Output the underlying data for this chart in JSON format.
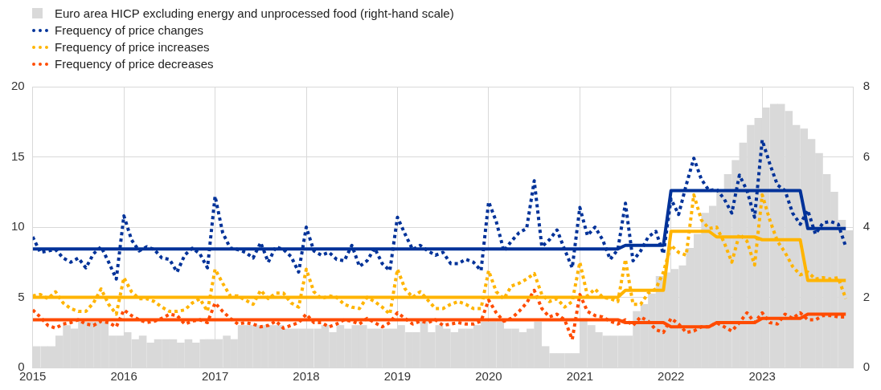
{
  "chart_data": {
    "type": "line",
    "x": [
      "2015-01",
      "2015-02",
      "2015-03",
      "2015-04",
      "2015-05",
      "2015-06",
      "2015-07",
      "2015-08",
      "2015-09",
      "2015-10",
      "2015-11",
      "2015-12",
      "2016-01",
      "2016-02",
      "2016-03",
      "2016-04",
      "2016-05",
      "2016-06",
      "2016-07",
      "2016-08",
      "2016-09",
      "2016-10",
      "2016-11",
      "2016-12",
      "2017-01",
      "2017-02",
      "2017-03",
      "2017-04",
      "2017-05",
      "2017-06",
      "2017-07",
      "2017-08",
      "2017-09",
      "2017-10",
      "2017-11",
      "2017-12",
      "2018-01",
      "2018-02",
      "2018-03",
      "2018-04",
      "2018-05",
      "2018-06",
      "2018-07",
      "2018-08",
      "2018-09",
      "2018-10",
      "2018-11",
      "2018-12",
      "2019-01",
      "2019-02",
      "2019-03",
      "2019-04",
      "2019-05",
      "2019-06",
      "2019-07",
      "2019-08",
      "2019-09",
      "2019-10",
      "2019-11",
      "2019-12",
      "2020-01",
      "2020-02",
      "2020-03",
      "2020-04",
      "2020-05",
      "2020-06",
      "2020-07",
      "2020-08",
      "2020-09",
      "2020-10",
      "2020-11",
      "2020-12",
      "2021-01",
      "2021-02",
      "2021-03",
      "2021-04",
      "2021-05",
      "2021-06",
      "2021-07",
      "2021-08",
      "2021-09",
      "2021-10",
      "2021-11",
      "2021-12",
      "2022-01",
      "2022-02",
      "2022-03",
      "2022-04",
      "2022-05",
      "2022-06",
      "2022-07",
      "2022-08",
      "2022-09",
      "2022-10",
      "2022-11",
      "2022-12",
      "2023-01",
      "2023-02",
      "2023-03",
      "2023-04",
      "2023-05",
      "2023-06",
      "2023-07",
      "2023-08",
      "2023-09",
      "2023-10",
      "2023-11",
      "2023-12"
    ],
    "xlim": [
      "2015",
      "2024"
    ],
    "xticks": [
      "2015",
      "2016",
      "2017",
      "2018",
      "2019",
      "2020",
      "2021",
      "2022",
      "2023"
    ],
    "ylim": [
      0,
      20
    ],
    "yticks": [
      0,
      5,
      10,
      15,
      20
    ],
    "y2lim": [
      0,
      8
    ],
    "y2ticks": [
      0,
      2,
      4,
      6,
      8
    ],
    "grid": true,
    "legend": "top left",
    "series": [
      {
        "name": "Euro area HICP excluding energy and unprocessed food (right-hand scale)",
        "type": "bar",
        "axis": "y2",
        "x": [
          "2015-01-16",
          "2015-02-16",
          "2015-03-16",
          "2015-04-16",
          "2015-05-16",
          "2015-06-16",
          "2015-07-16",
          "2015-08-16",
          "2015-09-16",
          "2015-10-16",
          "2015-11-16",
          "2015-12-16",
          "2016-01-16",
          "2016-02-16",
          "2016-03-16",
          "2016-04-16",
          "2016-05-16",
          "2016-06-16",
          "2016-07-16",
          "2016-08-16",
          "2016-09-16",
          "2016-10-16",
          "2016-11-16",
          "2016-12-16",
          "2017-01-16",
          "2017-02-16",
          "2017-03-16",
          "2017-04-16",
          "2017-05-16",
          "2017-06-16",
          "2017-07-16",
          "2017-08-16",
          "2017-09-16",
          "2017-10-16",
          "2017-11-16",
          "2017-12-16",
          "2018-01-16",
          "2018-02-16",
          "2018-03-16",
          "2018-04-16",
          "2018-05-16",
          "2018-06-16",
          "2018-07-16",
          "2018-08-16",
          "2018-09-16",
          "2018-10-16",
          "2018-11-16",
          "2018-12-16",
          "2019-01-16",
          "2019-02-16",
          "2019-03-16",
          "2019-04-16",
          "2019-05-16",
          "2019-06-16",
          "2019-07-16",
          "2019-08-16",
          "2019-09-16",
          "2019-10-16",
          "2019-11-16",
          "2019-12-16",
          "2020-01-16",
          "2020-02-16",
          "2020-03-16",
          "2020-04-16",
          "2020-05-16",
          "2020-06-16",
          "2020-07-16",
          "2020-08-16",
          "2020-09-16",
          "2020-10-16",
          "2020-11-16",
          "2020-12-16",
          "2021-01-16",
          "2021-02-16",
          "2021-03-16",
          "2021-04-16",
          "2021-05-16",
          "2021-06-16",
          "2021-07-16",
          "2021-08-16",
          "2021-09-16",
          "2021-10-16",
          "2021-11-16",
          "2021-12-16",
          "2022-01-16",
          "2022-02-16",
          "2022-03-16",
          "2022-04-16",
          "2022-05-16",
          "2022-06-16",
          "2022-07-16",
          "2022-08-16",
          "2022-09-16",
          "2022-10-16",
          "2022-11-16",
          "2022-12-16",
          "2023-01-16",
          "2023-02-16",
          "2023-03-16",
          "2023-04-16",
          "2023-05-16",
          "2023-06-16",
          "2023-07-16",
          "2023-08-16",
          "2023-09-16",
          "2023-10-16",
          "2023-11-16",
          "2023-12-16"
        ],
        "color": "#d9d9d9",
        "values": [
          0.6,
          0.6,
          0.6,
          0.9,
          1.2,
          1.1,
          1.3,
          1.3,
          1.3,
          1.3,
          0.9,
          0.9,
          1.0,
          0.8,
          0.9,
          0.7,
          0.8,
          0.8,
          0.8,
          0.7,
          0.8,
          0.7,
          0.8,
          0.8,
          0.8,
          0.9,
          0.8,
          1.2,
          1.2,
          1.2,
          1.2,
          1.2,
          1.2,
          1.1,
          1.1,
          1.1,
          1.1,
          1.1,
          1.2,
          1.0,
          1.2,
          1.1,
          1.2,
          1.2,
          1.1,
          1.1,
          1.1,
          1.1,
          1.2,
          1.0,
          1.0,
          1.3,
          1.0,
          1.2,
          1.1,
          1.0,
          1.1,
          1.1,
          1.2,
          1.3,
          1.3,
          1.3,
          1.1,
          1.1,
          1.0,
          1.1,
          1.3,
          0.6,
          0.4,
          0.4,
          0.4,
          0.4,
          1.4,
          1.2,
          1.0,
          0.9,
          0.9,
          0.9,
          0.9,
          1.6,
          1.8,
          2.1,
          2.6,
          2.7,
          2.8,
          2.9,
          3.4,
          3.8,
          4.4,
          4.6,
          5.0,
          5.5,
          5.9,
          6.4,
          6.9,
          7.1,
          7.4,
          7.5,
          7.5,
          7.3,
          6.9,
          6.8,
          6.5,
          6.1,
          5.5,
          5.0,
          4.2,
          3.9
        ]
      },
      {
        "name": "Frequency of price changes",
        "color": "#003299",
        "line_style": "dotted",
        "values": [
          9.3,
          8.2,
          8.3,
          8.4,
          7.8,
          7.5,
          7.8,
          7.1,
          8.1,
          8.6,
          7.5,
          6.3,
          10.8,
          9.1,
          8.3,
          8.6,
          8.4,
          7.8,
          7.7,
          6.8,
          8.0,
          8.5,
          8.1,
          7.1,
          12.2,
          9.6,
          8.5,
          8.4,
          8.2,
          7.8,
          8.9,
          7.5,
          8.6,
          8.4,
          7.9,
          6.8,
          10.0,
          8.3,
          8.0,
          8.2,
          7.7,
          7.6,
          8.7,
          7.2,
          7.6,
          8.5,
          7.4,
          6.9,
          10.7,
          9.5,
          8.4,
          8.7,
          8.3,
          8.0,
          8.2,
          7.4,
          7.4,
          7.7,
          7.5,
          6.9,
          11.8,
          10.4,
          8.3,
          9.0,
          9.6,
          9.9,
          13.3,
          8.6,
          9.1,
          9.8,
          8.4,
          7.1,
          11.4,
          9.4,
          10.0,
          9.1,
          7.7,
          8.4,
          11.7,
          7.6,
          8.3,
          9.3,
          9.7,
          8.1,
          12.0,
          10.9,
          13.0,
          14.9,
          13.4,
          12.6,
          12.7,
          12.0,
          11.0,
          13.7,
          12.6,
          10.7,
          16.2,
          14.5,
          13.0,
          12.6,
          11.0,
          10.2,
          11.2,
          9.5,
          10.3,
          10.4,
          10.2,
          8.6
        ]
      },
      {
        "name": "Frequency of price increases",
        "color": "#ffb400",
        "line_style": "dotted",
        "values": [
          5.1,
          5.2,
          4.9,
          5.4,
          4.6,
          4.2,
          4.0,
          4.0,
          4.6,
          5.6,
          4.5,
          3.8,
          6.4,
          5.4,
          4.9,
          4.9,
          4.7,
          4.3,
          4.0,
          4.0,
          4.1,
          4.6,
          4.9,
          4.0,
          7.0,
          6.0,
          5.1,
          5.1,
          4.8,
          4.5,
          5.5,
          4.9,
          5.3,
          5.3,
          4.6,
          4.3,
          7.0,
          5.4,
          4.9,
          5.1,
          5.0,
          4.5,
          4.3,
          4.2,
          5.0,
          4.7,
          4.3,
          3.8,
          7.0,
          5.6,
          5.0,
          5.4,
          4.8,
          4.2,
          4.2,
          4.5,
          4.7,
          4.5,
          4.2,
          4.2,
          6.9,
          5.4,
          4.9,
          5.8,
          6.0,
          6.3,
          6.7,
          5.2,
          4.7,
          4.9,
          4.3,
          4.7,
          7.5,
          5.1,
          5.6,
          5.0,
          4.9,
          4.7,
          7.7,
          4.5,
          4.5,
          5.3,
          5.6,
          6.8,
          8.7,
          8.2,
          8.0,
          12.3,
          10.5,
          9.9,
          10.0,
          8.9,
          7.5,
          9.5,
          9.0,
          7.3,
          12.3,
          10.5,
          9.0,
          8.2,
          7.2,
          6.6,
          6.8,
          6.3,
          6.4,
          6.3,
          6.4,
          4.9
        ]
      },
      {
        "name": "Frequency of price decreases",
        "color": "#ff4b00",
        "line_style": "dotted",
        "values": [
          4.1,
          3.6,
          3.0,
          2.8,
          3.1,
          3.2,
          3.4,
          3.1,
          3.0,
          3.3,
          3.2,
          2.9,
          4.1,
          3.7,
          3.4,
          3.2,
          3.3,
          3.5,
          3.8,
          3.7,
          3.1,
          3.3,
          3.4,
          3.2,
          4.6,
          4.0,
          3.5,
          3.1,
          3.2,
          3.1,
          2.9,
          3.0,
          3.3,
          2.8,
          3.0,
          3.2,
          3.8,
          3.2,
          3.2,
          2.9,
          3.1,
          3.4,
          3.3,
          3.1,
          3.5,
          3.2,
          2.9,
          3.2,
          3.9,
          3.5,
          3.1,
          3.3,
          3.2,
          3.4,
          3.0,
          3.1,
          3.2,
          3.1,
          3.1,
          3.3,
          4.8,
          3.9,
          3.3,
          3.5,
          4.0,
          4.6,
          5.5,
          4.2,
          3.6,
          3.8,
          3.4,
          2.0,
          5.2,
          4.0,
          3.7,
          3.6,
          3.3,
          3.1,
          3.4,
          3.0,
          3.6,
          3.3,
          2.7,
          2.5,
          3.5,
          3.1,
          2.5,
          2.6,
          2.9,
          2.9,
          3.2,
          2.9,
          2.6,
          3.2,
          3.9,
          3.2,
          3.9,
          3.2,
          3.1,
          3.8,
          3.5,
          3.9,
          3.4,
          3.4,
          3.7,
          3.7,
          3.6,
          3.6
        ]
      },
      {
        "color": "#003299",
        "line_style": "solid",
        "values": [
          8.45,
          8.45,
          8.45,
          8.45,
          8.45,
          8.45,
          8.45,
          8.45,
          8.45,
          8.45,
          8.45,
          8.45,
          8.45,
          8.45,
          8.45,
          8.45,
          8.45,
          8.45,
          8.45,
          8.45,
          8.45,
          8.45,
          8.45,
          8.45,
          8.45,
          8.45,
          8.45,
          8.45,
          8.45,
          8.45,
          8.45,
          8.45,
          8.45,
          8.45,
          8.45,
          8.45,
          8.45,
          8.45,
          8.45,
          8.45,
          8.45,
          8.45,
          8.45,
          8.45,
          8.45,
          8.45,
          8.45,
          8.45,
          8.45,
          8.45,
          8.45,
          8.45,
          8.45,
          8.45,
          8.45,
          8.45,
          8.45,
          8.45,
          8.45,
          8.45,
          8.45,
          8.45,
          8.45,
          8.45,
          8.45,
          8.45,
          8.45,
          8.45,
          8.45,
          8.45,
          8.45,
          8.45,
          8.45,
          8.45,
          8.45,
          8.45,
          8.45,
          8.45,
          8.7,
          8.7,
          8.7,
          8.7,
          8.7,
          8.7,
          12.6,
          12.6,
          12.6,
          12.6,
          12.6,
          12.6,
          12.6,
          12.6,
          12.6,
          12.6,
          12.6,
          12.6,
          12.6,
          12.6,
          12.6,
          12.6,
          12.6,
          12.6,
          9.9,
          9.9,
          9.9,
          9.9,
          9.9,
          9.9
        ]
      },
      {
        "color": "#ffb400",
        "line_style": "solid",
        "values": [
          5.0,
          5.0,
          5.0,
          5.0,
          5.0,
          5.0,
          5.0,
          5.0,
          5.0,
          5.0,
          5.0,
          5.0,
          5.0,
          5.0,
          5.0,
          5.0,
          5.0,
          5.0,
          5.0,
          5.0,
          5.0,
          5.0,
          5.0,
          5.0,
          5.0,
          5.0,
          5.0,
          5.0,
          5.0,
          5.0,
          5.0,
          5.0,
          5.0,
          5.0,
          5.0,
          5.0,
          5.0,
          5.0,
          5.0,
          5.0,
          5.0,
          5.0,
          5.0,
          5.0,
          5.0,
          5.0,
          5.0,
          5.0,
          5.0,
          5.0,
          5.0,
          5.0,
          5.0,
          5.0,
          5.0,
          5.0,
          5.0,
          5.0,
          5.0,
          5.0,
          5.0,
          5.0,
          5.0,
          5.0,
          5.0,
          5.0,
          5.0,
          5.0,
          5.0,
          5.0,
          5.0,
          5.0,
          5.0,
          5.0,
          5.0,
          5.0,
          5.0,
          5.0,
          5.5,
          5.5,
          5.5,
          5.5,
          5.5,
          5.5,
          9.7,
          9.7,
          9.7,
          9.7,
          9.7,
          9.7,
          9.3,
          9.3,
          9.3,
          9.3,
          9.3,
          9.3,
          9.1,
          9.1,
          9.1,
          9.1,
          9.1,
          9.1,
          6.2,
          6.2,
          6.2,
          6.2,
          6.2,
          6.2
        ]
      },
      {
        "color": "#ff4b00",
        "line_style": "solid",
        "values": [
          3.4,
          3.4,
          3.4,
          3.4,
          3.4,
          3.4,
          3.4,
          3.4,
          3.4,
          3.4,
          3.4,
          3.4,
          3.4,
          3.4,
          3.4,
          3.4,
          3.4,
          3.4,
          3.4,
          3.4,
          3.4,
          3.4,
          3.4,
          3.4,
          3.4,
          3.4,
          3.4,
          3.4,
          3.4,
          3.4,
          3.4,
          3.4,
          3.4,
          3.4,
          3.4,
          3.4,
          3.4,
          3.4,
          3.4,
          3.4,
          3.4,
          3.4,
          3.4,
          3.4,
          3.4,
          3.4,
          3.4,
          3.4,
          3.4,
          3.4,
          3.4,
          3.4,
          3.4,
          3.4,
          3.4,
          3.4,
          3.4,
          3.4,
          3.4,
          3.4,
          3.4,
          3.4,
          3.4,
          3.4,
          3.4,
          3.4,
          3.4,
          3.4,
          3.4,
          3.4,
          3.4,
          3.4,
          3.4,
          3.4,
          3.4,
          3.4,
          3.4,
          3.4,
          3.2,
          3.2,
          3.2,
          3.2,
          3.2,
          3.2,
          2.9,
          2.9,
          2.9,
          2.9,
          2.9,
          2.9,
          3.2,
          3.2,
          3.2,
          3.2,
          3.2,
          3.2,
          3.5,
          3.5,
          3.5,
          3.5,
          3.5,
          3.5,
          3.8,
          3.8,
          3.8,
          3.8,
          3.8,
          3.8
        ]
      }
    ]
  }
}
